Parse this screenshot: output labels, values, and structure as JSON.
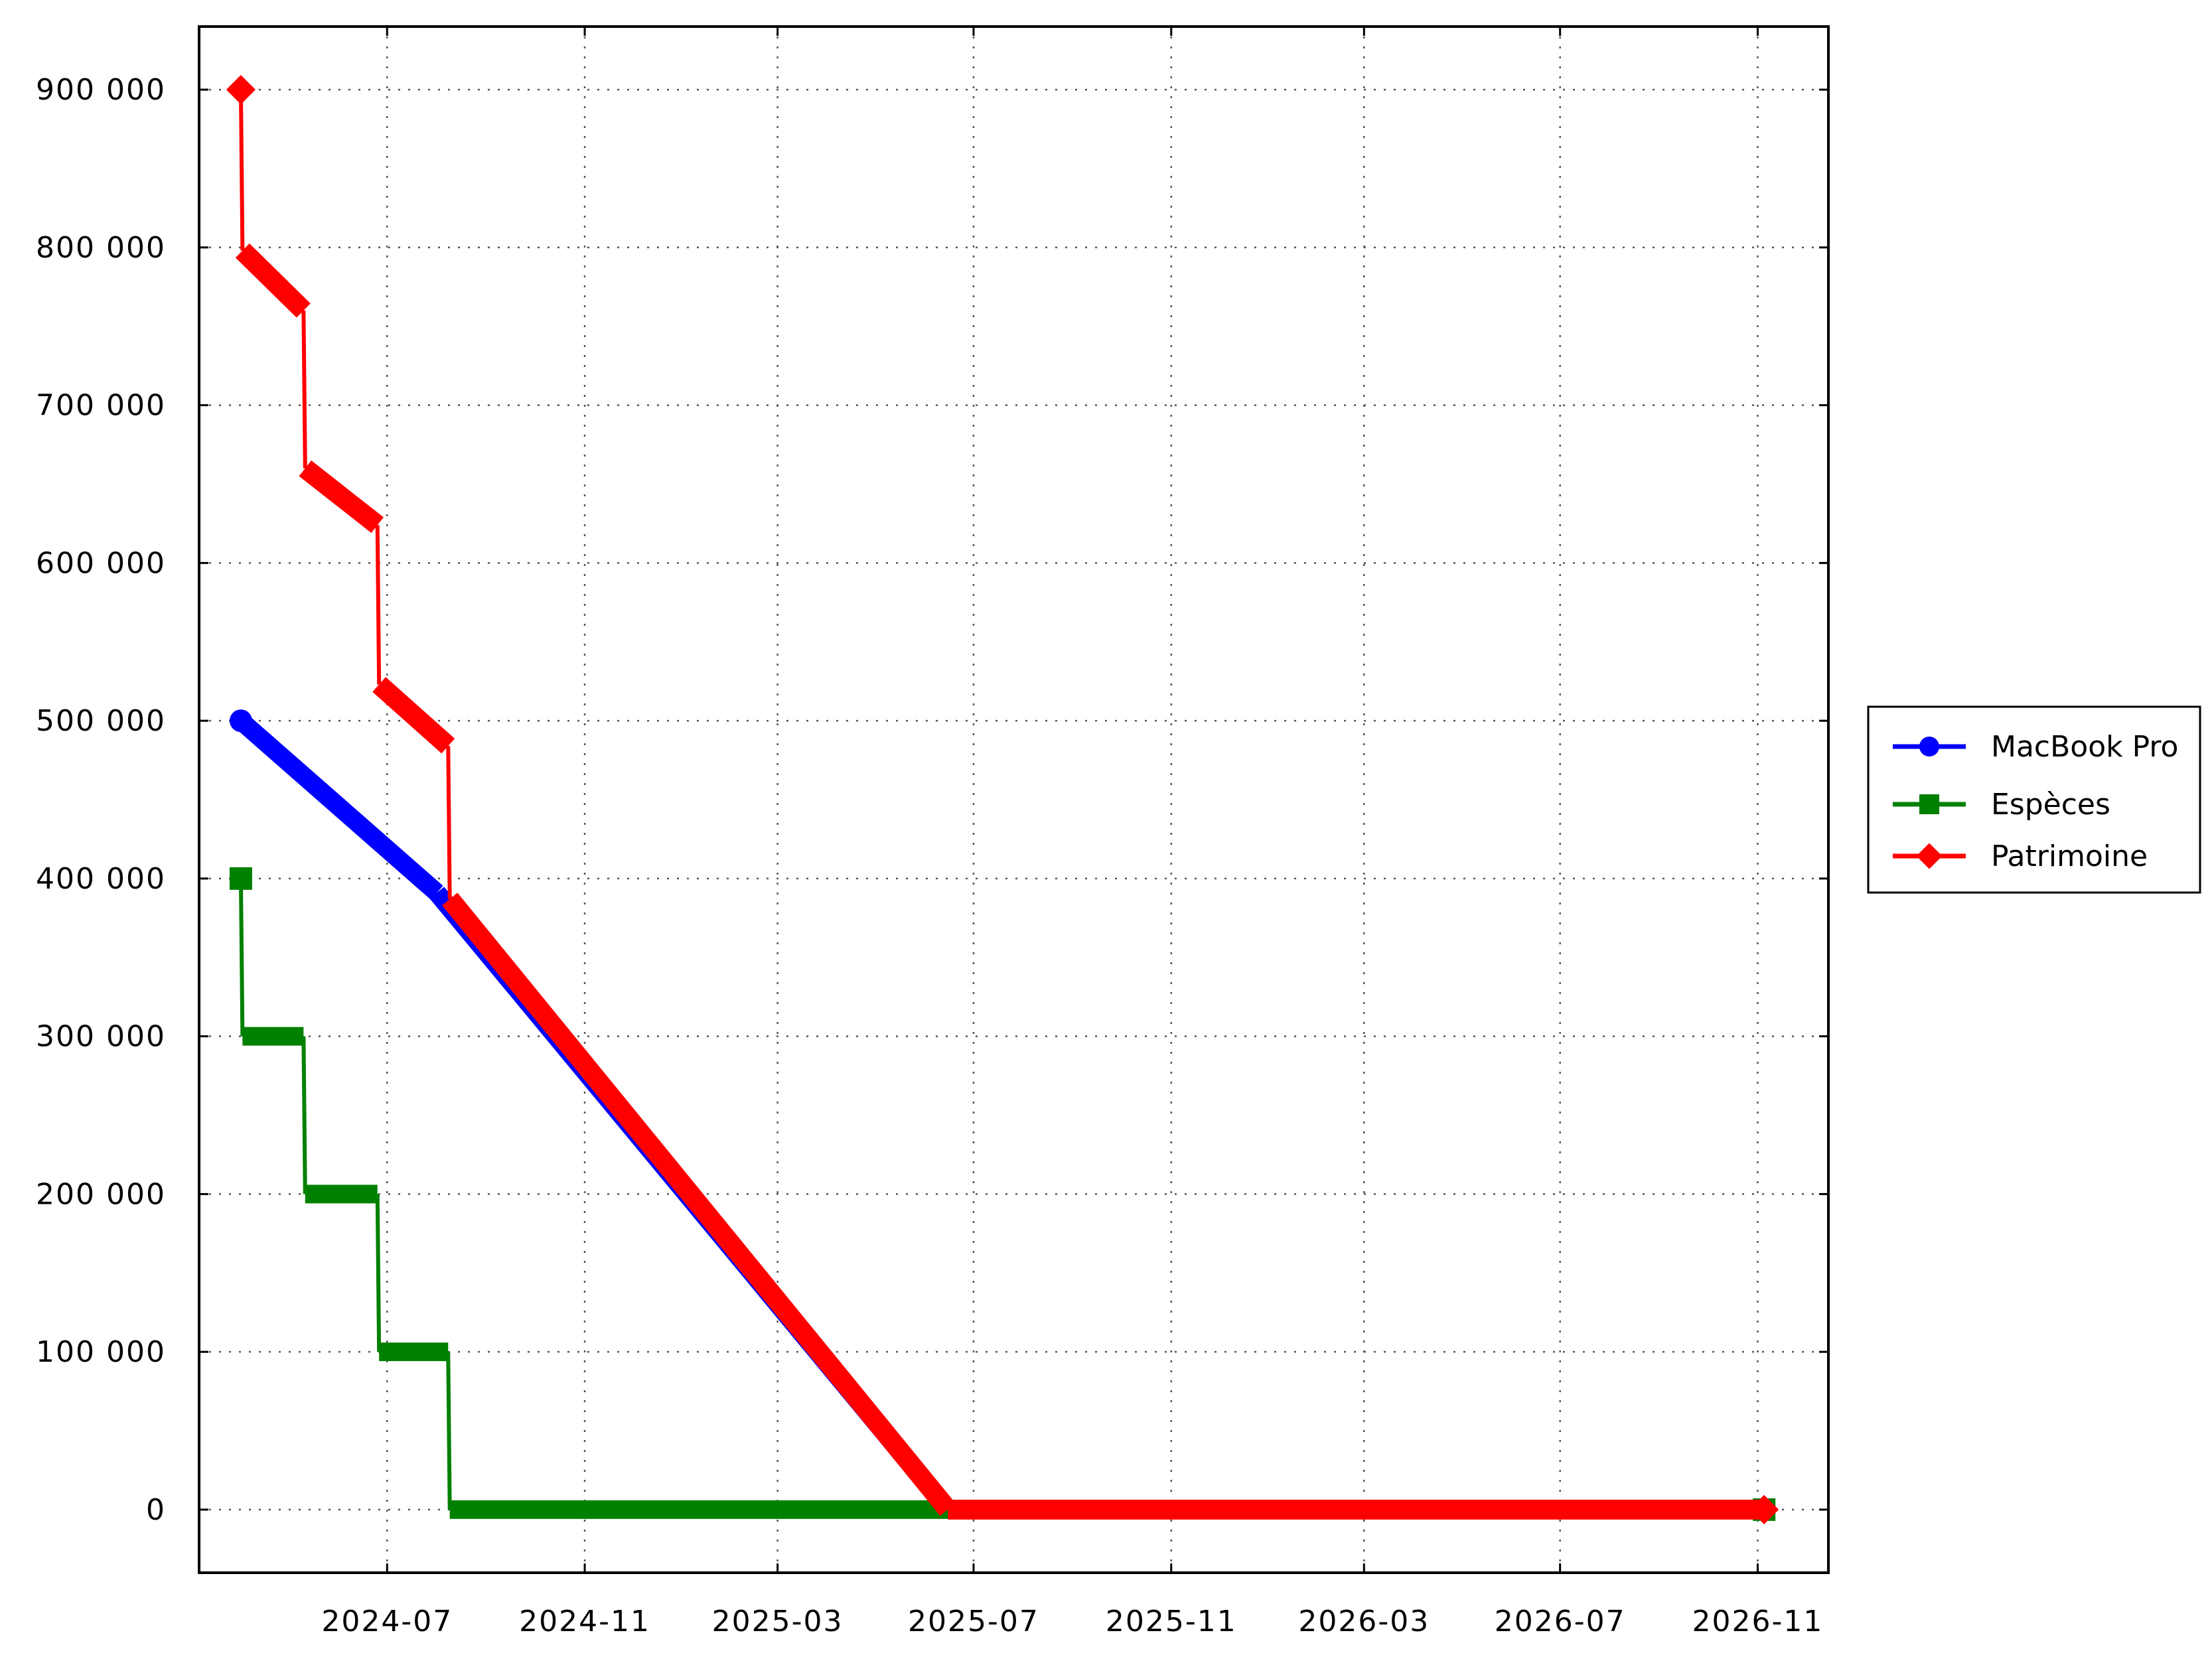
{
  "chart_data": {
    "type": "line",
    "title": "",
    "xlabel": "",
    "ylabel": "",
    "x_ticks": [
      "2024-07",
      "2024-11",
      "2025-03",
      "2025-07",
      "2025-11",
      "2026-03",
      "2026-07",
      "2026-11"
    ],
    "y_ticks": [
      "0",
      "100 000",
      "200 000",
      "300 000",
      "400 000",
      "500 000",
      "600 000",
      "700 000",
      "800 000",
      "900 000"
    ],
    "xlim": [
      "2024-03-06",
      "2026-12-15"
    ],
    "ylim": [
      -40000,
      940000
    ],
    "grid": true,
    "legend_position": "right",
    "series": [
      {
        "name": "MacBook Pro",
        "color": "#0000ff",
        "marker": "circle",
        "points": [
          {
            "x": "2024-04-01",
            "y": 500000
          },
          {
            "x": "2024-08-01",
            "y": 391000
          },
          {
            "x": "2025-06-15",
            "y": 0
          },
          {
            "x": "2026-11-05",
            "y": 0
          }
        ]
      },
      {
        "name": "Espèces",
        "color": "#008000",
        "marker": "square",
        "points": [
          {
            "x": "2024-04-01",
            "y": 400000
          },
          {
            "x": "2024-04-02",
            "y": 300000
          },
          {
            "x": "2024-05-10",
            "y": 300000
          },
          {
            "x": "2024-05-11",
            "y": 200000
          },
          {
            "x": "2024-06-25",
            "y": 200000
          },
          {
            "x": "2024-06-26",
            "y": 100000
          },
          {
            "x": "2024-08-08",
            "y": 100000
          },
          {
            "x": "2024-08-09",
            "y": 0
          },
          {
            "x": "2025-06-15",
            "y": 0
          },
          {
            "x": "2026-11-05",
            "y": 0
          }
        ]
      },
      {
        "name": "Patrimoine",
        "color": "#ff0000",
        "marker": "diamond",
        "points": [
          {
            "x": "2024-04-01",
            "y": 900000
          },
          {
            "x": "2024-04-02",
            "y": 798000
          },
          {
            "x": "2024-05-10",
            "y": 760000
          },
          {
            "x": "2024-05-11",
            "y": 660000
          },
          {
            "x": "2024-06-25",
            "y": 624000
          },
          {
            "x": "2024-06-26",
            "y": 523000
          },
          {
            "x": "2024-08-08",
            "y": 484000
          },
          {
            "x": "2024-08-09",
            "y": 387000
          },
          {
            "x": "2025-06-15",
            "y": 0
          },
          {
            "x": "2026-11-05",
            "y": 0
          }
        ]
      }
    ]
  }
}
